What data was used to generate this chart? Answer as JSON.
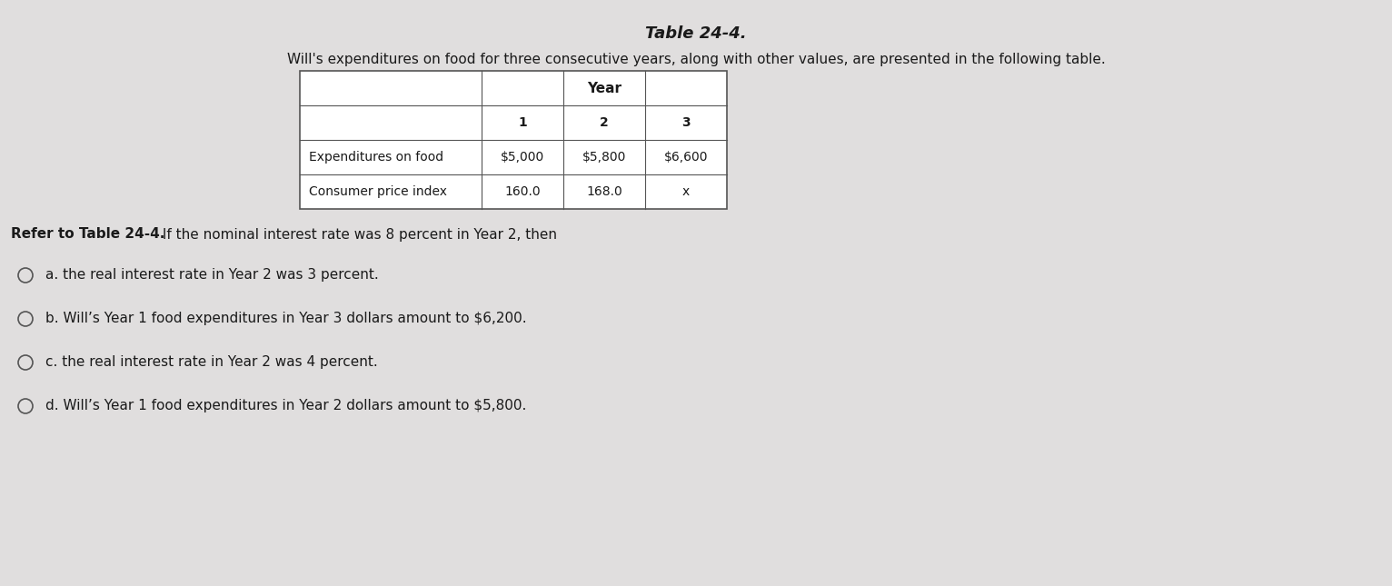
{
  "title": "Table 24-4.",
  "subtitle": "Will's expenditures on food for three consecutive years, along with other values, are presented in the following table.",
  "table_year_header": "Year",
  "table_years": [
    "1",
    "2",
    "3"
  ],
  "table_rows": [
    [
      "Expenditures on food",
      "$5,000",
      "$5,800",
      "$6,600"
    ],
    [
      "Consumer price index",
      "160.0",
      "168.0",
      "x"
    ]
  ],
  "refer_text_bold": "Refer to Table 24-4.",
  "refer_text_normal": " If the nominal interest rate was 8 percent in Year 2, then",
  "choices": [
    "a. the real interest rate in Year 2 was 3 percent.",
    "b. Will’s Year 1 food expenditures in Year 3 dollars amount to $6,200.",
    "c. the real interest rate in Year 2 was 4 percent.",
    "d. Will’s Year 1 food expenditures in Year 2 dollars amount to $5,800."
  ],
  "background_color": "#e0dede",
  "text_color": "#1a1a1a",
  "font_size_title": 13,
  "font_size_subtitle": 11,
  "font_size_table": 10,
  "font_size_body": 11,
  "font_size_refer": 11
}
